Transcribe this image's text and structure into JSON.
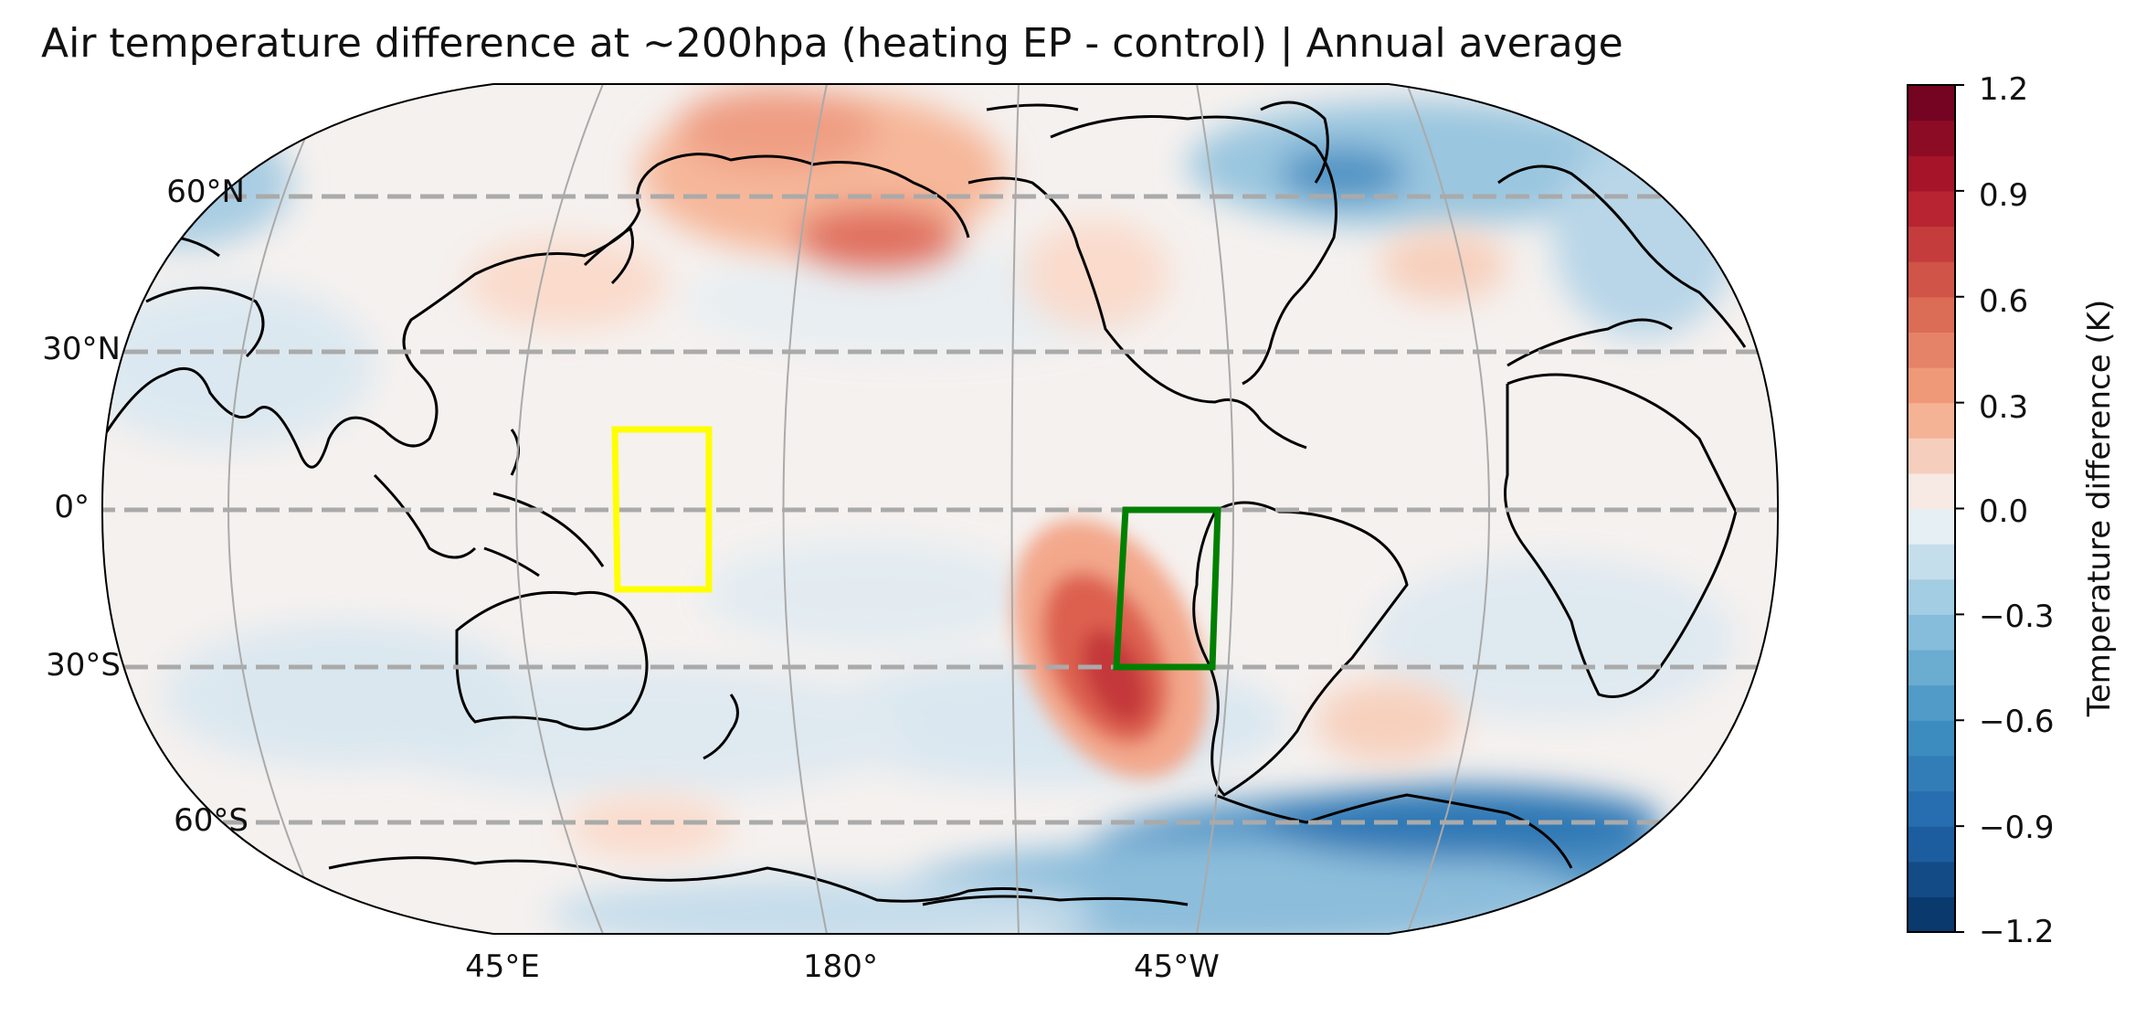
{
  "title": "Air temperature difference at ~200hpa (heating EP - control) | Annual average",
  "lat_labels": [
    "60°N",
    "30°N",
    "0°",
    "30°S",
    "60°S"
  ],
  "lon_labels": [
    "45°E",
    "180°",
    "45°W"
  ],
  "colorbar": {
    "label": "Temperature difference (K)",
    "ticks": [
      "1.2",
      "0.9",
      "0.6",
      "0.3",
      "0.0",
      "−0.3",
      "−0.6",
      "−0.9",
      "−1.2"
    ],
    "range": [
      -1.2,
      1.2
    ],
    "colormap": "RdBu_r",
    "negative_color": "#2166ac",
    "positive_color": "#b2182b",
    "neutral_color": "#f7f7f7"
  },
  "map": {
    "projection": "Robinson",
    "central_longitude": 180,
    "dashed_latitudes": [
      60,
      30,
      0,
      -30,
      -60
    ],
    "regions": [
      {
        "color": "#ffff00",
        "lon": [
          150,
          170
        ],
        "lat": [
          -15,
          15
        ]
      },
      {
        "color": "#008000",
        "lon": [
          -80,
          -70
        ],
        "lat": [
          -30,
          0
        ]
      }
    ]
  }
}
